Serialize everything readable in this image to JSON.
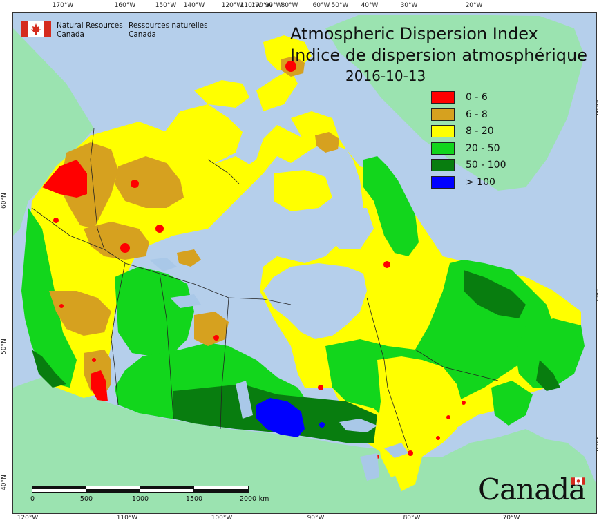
{
  "header": {
    "agency_en_line1": "Natural Resources",
    "agency_en_line2": "Canada",
    "agency_fr_line1": "Ressources naturelles",
    "agency_fr_line2": "Canada"
  },
  "map": {
    "title_en": "Atmospheric Dispersion Index",
    "title_fr": "Indice de dispersion atmosphérique",
    "date": "2016-10-13",
    "colors": {
      "ocean": "#b5cfeb",
      "foreign_land": "#9be3b0",
      "great_lakes": "#a9c8e8"
    },
    "legend": [
      {
        "label": "0 - 6",
        "color": "#ff0000"
      },
      {
        "label": "6 - 8",
        "color": "#d6a11f"
      },
      {
        "label": "8 - 20",
        "color": "#ffff00"
      },
      {
        "label": "20 - 50",
        "color": "#12d61c"
      },
      {
        "label": "50 - 100",
        "color": "#087d0f"
      },
      {
        "label": "> 100",
        "color": "#0000ff"
      }
    ],
    "top_ticks": [
      "170°W",
      "160°W",
      "150°W",
      "140°W",
      "120°W",
      "110°W",
      "100°W",
      "90°W",
      "80°W",
      "60°W",
      "50°W",
      "40°W",
      "30°W",
      "20°W"
    ],
    "bottom_ticks": [
      "120°W",
      "110°W",
      "100°W",
      "90°W",
      "80°W",
      "70°W"
    ],
    "left_ticks": [
      "60°N",
      "50°N",
      "40°N"
    ],
    "right_ticks": [
      "60°N",
      "50°N",
      "40°N"
    ],
    "scale": {
      "labels": [
        "0",
        "500",
        "1000",
        "1500",
        "2000"
      ],
      "unit": "km"
    },
    "wordmark": "Canada"
  }
}
